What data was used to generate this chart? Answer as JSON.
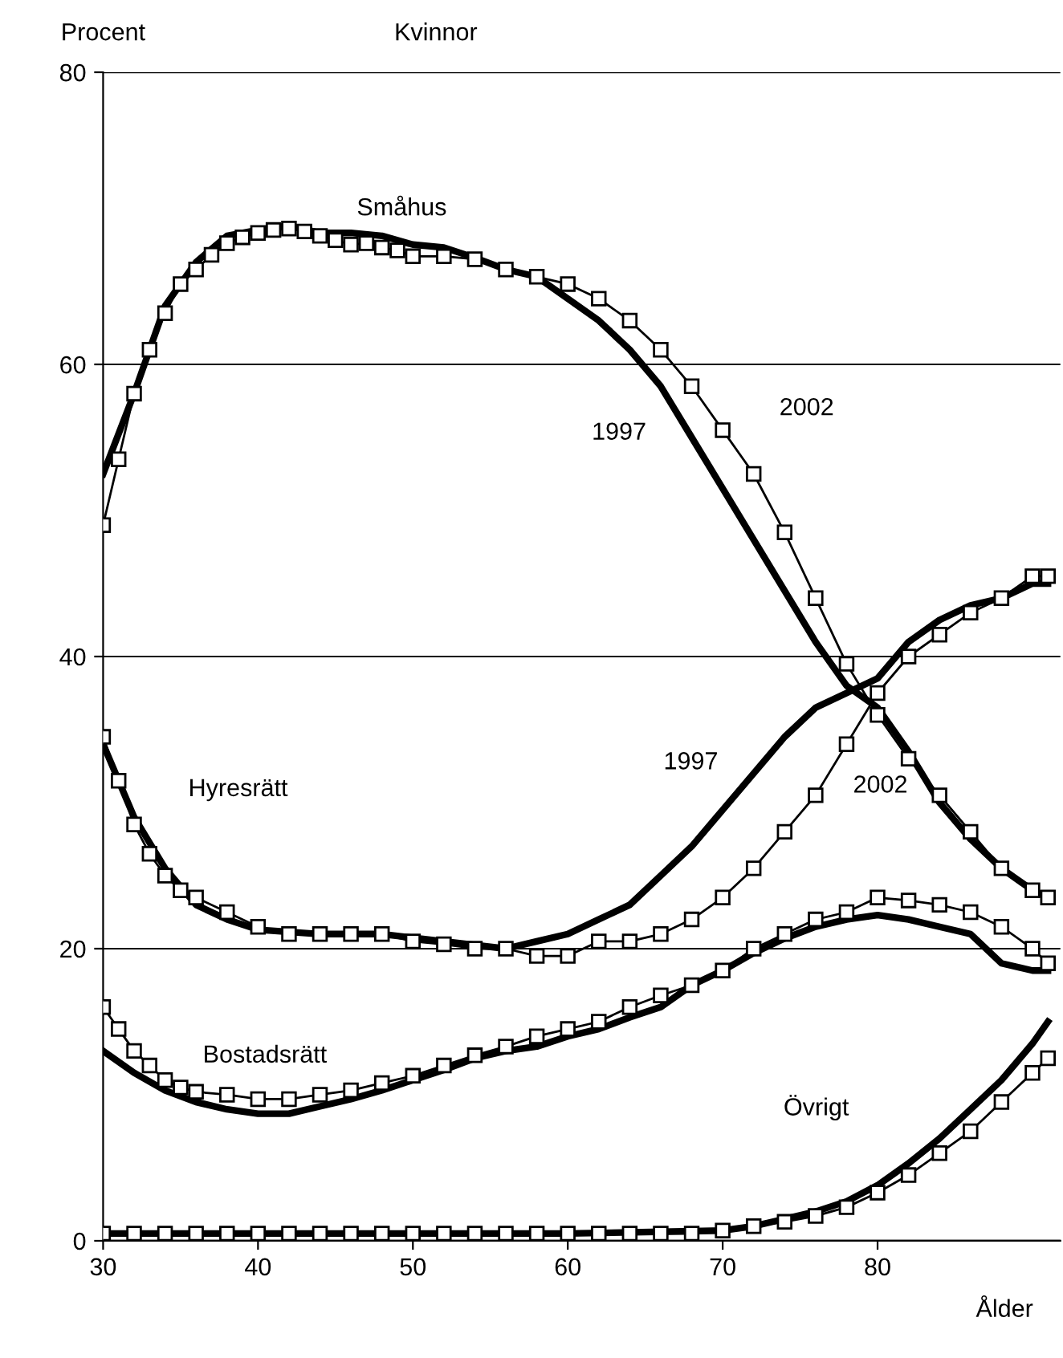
{
  "chart_data": {
    "type": "line",
    "title": "Kvinnor",
    "ylabel": "Procent",
    "xlabel": "Ålder",
    "xlim": [
      30,
      91.8
    ],
    "xticks": [
      30,
      40,
      50,
      60,
      70,
      80
    ],
    "ylim": [
      0,
      80
    ],
    "yticks": [
      0,
      20,
      40,
      60,
      80
    ],
    "grid": "y",
    "series": [
      {
        "color": "#000000",
        "marker": "none",
        "x": [
          30,
          32,
          34,
          36,
          38,
          40,
          42,
          44,
          46,
          48,
          50,
          52,
          54,
          56,
          58,
          60,
          62,
          64,
          66,
          68,
          70,
          72,
          74,
          76,
          78,
          80,
          82,
          84,
          86,
          88,
          90,
          91
        ],
        "values": [
          52.5,
          58,
          64,
          67,
          68.8,
          69.2,
          69.5,
          69,
          69,
          68.8,
          68.2,
          68,
          67.3,
          66.5,
          66,
          64.5,
          63,
          61,
          58.5,
          55,
          51.5,
          48,
          44.5,
          41,
          38,
          36.5,
          33.5,
          30,
          27.5,
          25.5,
          24,
          23.5
        ]
      },
      {
        "color": "#000000",
        "marker": "square",
        "x": [
          30,
          31,
          32,
          33,
          34,
          35,
          36,
          37,
          38,
          39,
          40,
          41,
          42,
          43,
          44,
          45,
          46,
          47,
          48,
          49,
          50,
          52,
          54,
          56,
          58,
          60,
          62,
          64,
          66,
          68,
          70,
          72,
          74,
          76,
          78,
          80,
          82,
          84,
          86,
          88,
          90,
          91
        ],
        "values": [
          49,
          53.5,
          58,
          61,
          63.5,
          65.5,
          66.5,
          67.5,
          68.3,
          68.7,
          69,
          69.2,
          69.3,
          69.1,
          68.8,
          68.5,
          68.2,
          68.3,
          68,
          67.8,
          67.4,
          67.4,
          67.2,
          66.5,
          66,
          65.5,
          64.5,
          63,
          61,
          58.5,
          55.5,
          52.5,
          48.5,
          44,
          39.5,
          36,
          33,
          30.5,
          28,
          25.5,
          24,
          23.5
        ]
      },
      {
        "color": "#000000",
        "marker": "none",
        "x": [
          30,
          32,
          34,
          36,
          38,
          40,
          44,
          48,
          52,
          56,
          58,
          60,
          62,
          64,
          66,
          68,
          70,
          72,
          74,
          76,
          78,
          80,
          82,
          84,
          86,
          88,
          90,
          91
        ],
        "values": [
          34,
          29,
          25.5,
          23,
          22,
          21.3,
          21,
          21,
          20.5,
          20,
          20.5,
          21,
          22,
          23,
          25,
          27,
          29.5,
          32,
          34.5,
          36.5,
          37.5,
          38.5,
          41,
          42.5,
          43.5,
          44,
          45,
          45
        ]
      },
      {
        "color": "#000000",
        "marker": "square",
        "x": [
          30,
          31,
          32,
          33,
          34,
          35,
          36,
          38,
          40,
          42,
          44,
          46,
          48,
          50,
          52,
          54,
          56,
          58,
          60,
          62,
          64,
          66,
          68,
          70,
          72,
          74,
          76,
          78,
          80,
          82,
          84,
          86,
          88,
          90,
          91
        ],
        "values": [
          34.5,
          31.5,
          28.5,
          26.5,
          25,
          24,
          23.5,
          22.5,
          21.5,
          21,
          21,
          21,
          21,
          20.5,
          20.3,
          20,
          20,
          19.5,
          19.5,
          20.5,
          20.5,
          21,
          22,
          23.5,
          25.5,
          28,
          30.5,
          34,
          37.5,
          40,
          41.5,
          43,
          44,
          45.5,
          45.5
        ]
      },
      {
        "color": "#000000",
        "marker": "none",
        "x": [
          30,
          32,
          34,
          36,
          38,
          40,
          42,
          44,
          46,
          48,
          50,
          52,
          54,
          56,
          58,
          60,
          62,
          64,
          66,
          68,
          70,
          72,
          74,
          76,
          78,
          80,
          82,
          84,
          86,
          88,
          90,
          91
        ],
        "values": [
          13,
          11.5,
          10.3,
          9.5,
          9,
          8.7,
          8.7,
          9.2,
          9.7,
          10.3,
          11,
          11.7,
          12.5,
          13,
          13.3,
          14,
          14.5,
          15.3,
          16,
          17.5,
          18.5,
          19.7,
          20.7,
          21.5,
          22,
          22.3,
          22,
          21.5,
          21,
          19,
          18.5,
          18.5
        ]
      },
      {
        "color": "#000000",
        "marker": "square",
        "x": [
          30,
          31,
          32,
          33,
          34,
          35,
          36,
          38,
          40,
          42,
          44,
          46,
          48,
          50,
          52,
          54,
          56,
          58,
          60,
          62,
          64,
          66,
          68,
          70,
          72,
          74,
          76,
          78,
          80,
          82,
          84,
          86,
          88,
          90,
          91
        ],
        "values": [
          16,
          14.5,
          13,
          12,
          11,
          10.5,
          10.2,
          10,
          9.7,
          9.7,
          10,
          10.3,
          10.8,
          11.3,
          12,
          12.7,
          13.3,
          14,
          14.5,
          15,
          16,
          16.8,
          17.5,
          18.5,
          20,
          21,
          22,
          22.5,
          23.5,
          23.3,
          23,
          22.5,
          21.5,
          20,
          19
        ]
      },
      {
        "color": "#000000",
        "marker": "none",
        "x": [
          30,
          40,
          50,
          60,
          70,
          72,
          74,
          76,
          78,
          80,
          82,
          84,
          86,
          88,
          90,
          91
        ],
        "values": [
          0.5,
          0.5,
          0.5,
          0.5,
          0.7,
          1,
          1.5,
          2,
          2.7,
          3.8,
          5.3,
          7,
          9,
          11,
          13.5,
          15
        ]
      },
      {
        "color": "#000000",
        "marker": "square",
        "x": [
          30,
          32,
          34,
          36,
          38,
          40,
          42,
          44,
          46,
          48,
          50,
          52,
          54,
          56,
          58,
          60,
          62,
          64,
          66,
          68,
          70,
          72,
          74,
          76,
          78,
          80,
          82,
          84,
          86,
          88,
          90,
          91
        ],
        "values": [
          0.5,
          0.5,
          0.5,
          0.5,
          0.5,
          0.5,
          0.5,
          0.5,
          0.5,
          0.5,
          0.5,
          0.5,
          0.5,
          0.5,
          0.5,
          0.5,
          0.5,
          0.5,
          0.5,
          0.5,
          0.7,
          1,
          1.3,
          1.7,
          2.3,
          3.3,
          4.5,
          6,
          7.5,
          9.5,
          11.5,
          12.5
        ]
      }
    ],
    "annotations": [
      "Småhus",
      "1997",
      "2002",
      "Hyresrätt",
      "1997",
      "2002",
      "Bostadsrätt",
      "Övrigt"
    ]
  }
}
